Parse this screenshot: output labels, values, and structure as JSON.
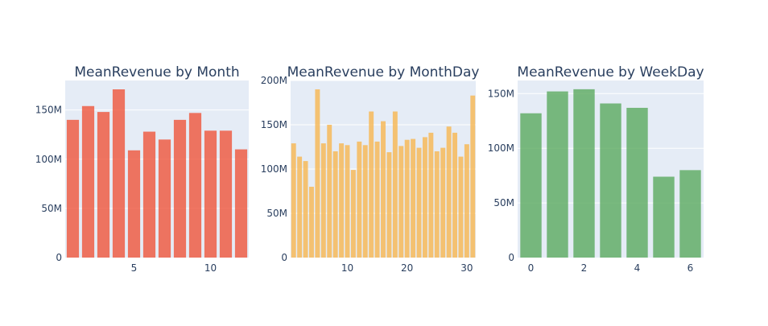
{
  "chart_data": [
    {
      "type": "bar",
      "title": "MeanRevenue by Month",
      "color": "#EF553B",
      "x": [
        1,
        2,
        3,
        4,
        5,
        6,
        7,
        8,
        9,
        10,
        11,
        12
      ],
      "values": [
        140000000,
        154000000,
        148000000,
        171000000,
        109000000,
        128000000,
        120000000,
        140000000,
        147000000,
        129000000,
        129000000,
        110000000
      ],
      "xlim": [
        0.5,
        12.5
      ],
      "ylim": [
        0,
        180000000
      ],
      "x_ticks": [
        5,
        10
      ],
      "x_tick_labels": [
        "5",
        "10"
      ],
      "y_ticks": [
        0,
        50000000,
        100000000,
        150000000
      ],
      "y_tick_labels": [
        "0",
        "50M",
        "100M",
        "150M"
      ],
      "grid": true
    },
    {
      "type": "bar",
      "title": "MeanRevenue by MonthDay",
      "color": "#F7B650",
      "x": [
        1,
        2,
        3,
        4,
        5,
        6,
        7,
        8,
        9,
        10,
        11,
        12,
        13,
        14,
        15,
        16,
        17,
        18,
        19,
        20,
        21,
        22,
        23,
        24,
        25,
        26,
        27,
        28,
        29,
        30,
        31
      ],
      "values": [
        129000000,
        114000000,
        109000000,
        80000000,
        190000000,
        129000000,
        150000000,
        120000000,
        129000000,
        127000000,
        99000000,
        131000000,
        127000000,
        165000000,
        131000000,
        154000000,
        119000000,
        165000000,
        126000000,
        133000000,
        134000000,
        124000000,
        136000000,
        141000000,
        120000000,
        124000000,
        148000000,
        141000000,
        114000000,
        128000000,
        183000000
      ],
      "xlim": [
        0.5,
        31.5
      ],
      "ylim": [
        0,
        200000000
      ],
      "x_ticks": [
        10,
        20,
        30
      ],
      "x_tick_labels": [
        "10",
        "20",
        "30"
      ],
      "y_ticks": [
        0,
        50000000,
        100000000,
        150000000,
        200000000
      ],
      "y_tick_labels": [
        "0",
        "50M",
        "100M",
        "150M",
        "200M"
      ],
      "grid": true
    },
    {
      "type": "bar",
      "title": "MeanRevenue by WeekDay",
      "color": "#5AAA5F",
      "x": [
        0,
        1,
        2,
        3,
        4,
        5,
        6
      ],
      "values": [
        132000000,
        152000000,
        154000000,
        141000000,
        137000000,
        74000000,
        80000000
      ],
      "xlim": [
        -0.5,
        6.5
      ],
      "ylim": [
        0,
        162000000
      ],
      "x_ticks": [
        0,
        2,
        4,
        6
      ],
      "x_tick_labels": [
        "0",
        "2",
        "4",
        "6"
      ],
      "y_ticks": [
        0,
        50000000,
        100000000,
        150000000
      ],
      "y_tick_labels": [
        "0",
        "50M",
        "100M",
        "150M"
      ],
      "grid": true
    }
  ]
}
